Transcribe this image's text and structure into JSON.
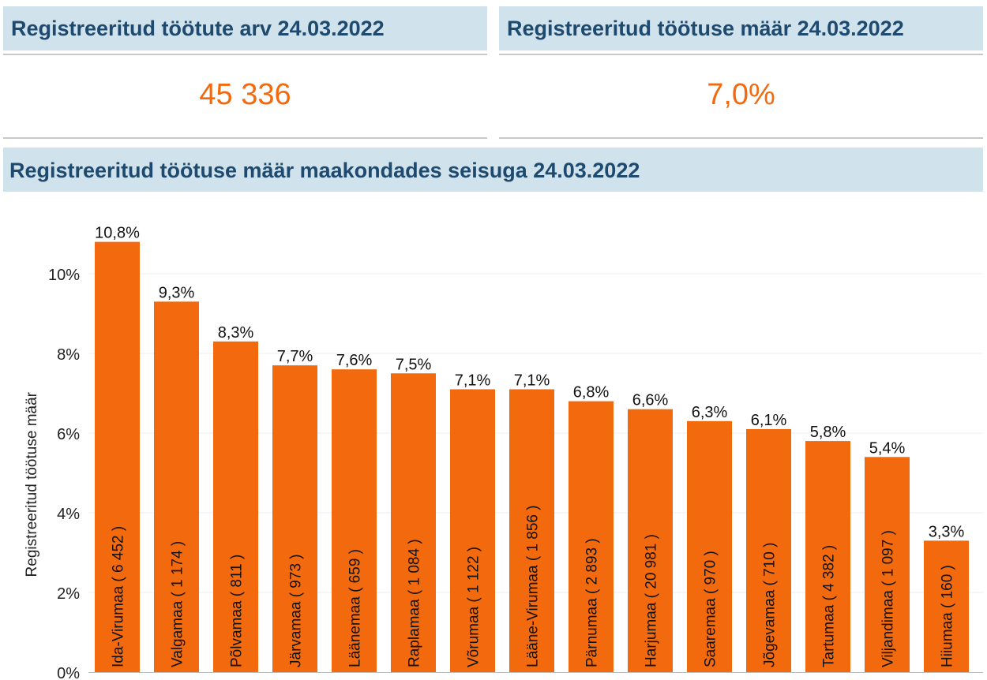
{
  "kpi_left": {
    "title": "Registreeritud töötute arv 24.03.2022",
    "value": "45 336"
  },
  "kpi_right": {
    "title": "Registreeritud töötuse määr 24.03.2022",
    "value": "7,0%"
  },
  "chart_section": {
    "title": "Registreeritud töötuse määr maakondades seisuga 24.03.2022"
  },
  "colors": {
    "bar": "#f26a0d",
    "header_bg": "#d0e2ec",
    "header_text": "#1d4a6e",
    "kpi_value": "#f26a0d"
  },
  "chart_data": {
    "type": "bar",
    "title": "",
    "xlabel": "",
    "ylabel": "Registreeritud töötuse määr",
    "ylim": [
      0,
      11
    ],
    "yticks": [
      0,
      2,
      4,
      6,
      8,
      10
    ],
    "ytick_labels": [
      "0%",
      "2%",
      "4%",
      "6%",
      "8%",
      "10%"
    ],
    "grid": true,
    "categories": [
      "Ida-Virumaa ( 6 452 )",
      "Valgamaa ( 1 174 )",
      "Põlvamaa ( 811 )",
      "Järvamaa ( 973 )",
      "Läänemaa ( 659 )",
      "Raplamaa ( 1 084 )",
      "Võrumaa ( 1 122 )",
      "Lääne-Virumaa ( 1 856 )",
      "Pärnumaa ( 2 893 )",
      "Harjumaa ( 20 981 )",
      "Saaremaa ( 970 )",
      "Jõgevamaa ( 710 )",
      "Tartumaa ( 4 382 )",
      "Viljandimaa ( 1 097 )",
      "Hiiumaa ( 160 )"
    ],
    "values": [
      10.8,
      9.3,
      8.3,
      7.7,
      7.6,
      7.5,
      7.1,
      7.1,
      6.8,
      6.6,
      6.3,
      6.1,
      5.8,
      5.4,
      3.3
    ],
    "value_labels": [
      "10,8%",
      "9,3%",
      "8,3%",
      "7,7%",
      "7,6%",
      "7,5%",
      "7,1%",
      "7,1%",
      "6,8%",
      "6,6%",
      "6,3%",
      "6,1%",
      "5,8%",
      "5,4%",
      "3,3%"
    ]
  }
}
